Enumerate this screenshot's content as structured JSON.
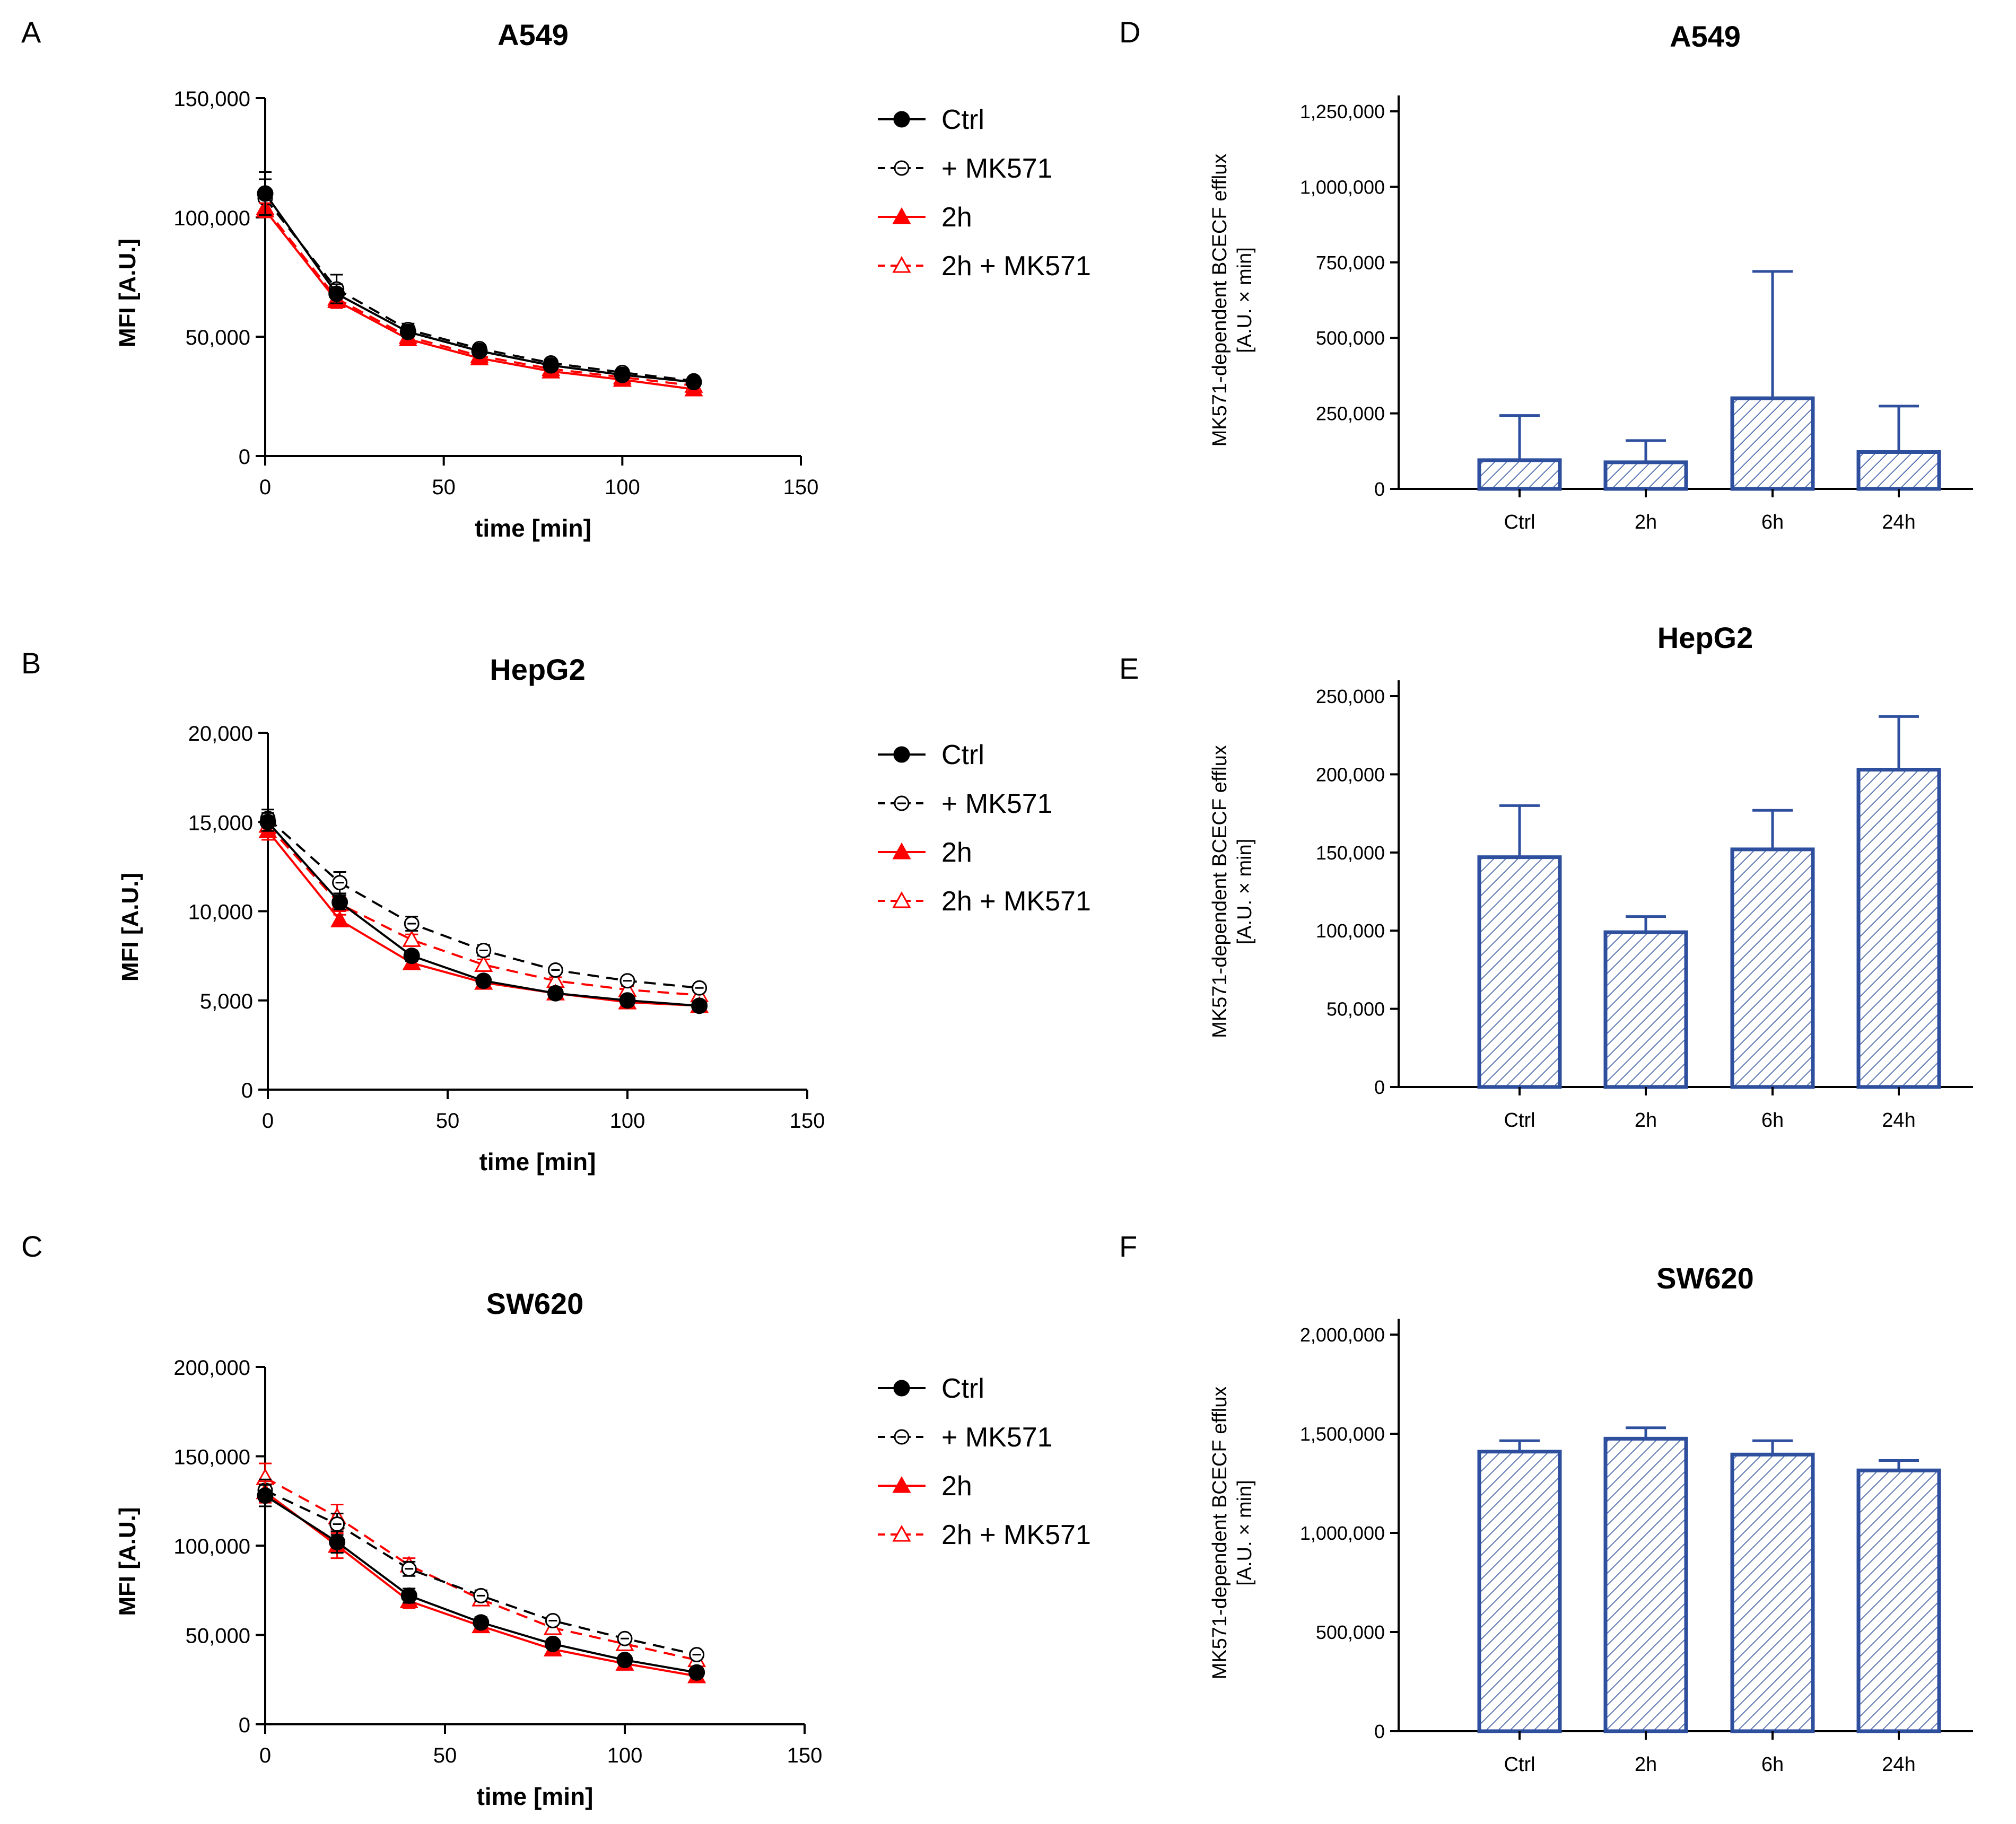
{
  "figure": {
    "panels": [
      {
        "letter": "A"
      },
      {
        "letter": "B"
      },
      {
        "letter": "C"
      },
      {
        "letter": "D"
      },
      {
        "letter": "E"
      },
      {
        "letter": "F"
      }
    ]
  },
  "colors": {
    "axis": "#000000",
    "ctrl": "#000000",
    "red": "#ff0000",
    "bar_stroke": "#2e4f9e",
    "bar_fill": "#ffffff",
    "bar_hatch": "#2e4f9e"
  },
  "chart_data": [
    {
      "id": "A",
      "type": "line",
      "title": "A549",
      "xlabel": "time [min]",
      "ylabel": "MFI [A.U.]",
      "xlim": [
        0,
        150
      ],
      "ylim": [
        0,
        150000
      ],
      "xticks": [
        0,
        50,
        100,
        150
      ],
      "xtick_labels": [
        "0",
        "50",
        "100",
        "150"
      ],
      "yticks": [
        0,
        50000,
        100000,
        150000
      ],
      "ytick_labels": [
        "0",
        "50,000",
        "100,000",
        "150,000"
      ],
      "x": [
        0,
        20,
        40,
        60,
        80,
        100,
        120
      ],
      "legend": [
        "Ctrl",
        "+ MK571",
        "2h",
        "2h + MK571"
      ],
      "series": [
        {
          "name": "Ctrl",
          "values": [
            110000,
            68000,
            52000,
            44000,
            38000,
            34000,
            31000
          ],
          "err": [
            9000,
            4000,
            2000,
            1500,
            1200,
            1000,
            1000
          ]
        },
        {
          "name": "+ MK571",
          "values": [
            108000,
            70000,
            53000,
            45000,
            39000,
            35000,
            31500
          ],
          "err": [
            8000,
            6000,
            2500,
            1500,
            1200,
            1000,
            1000
          ]
        },
        {
          "name": "2h",
          "values": [
            103000,
            65000,
            49000,
            41000,
            35500,
            32000,
            28000
          ],
          "err": [
            3000,
            3000,
            2000,
            1500,
            1200,
            1000,
            1000
          ]
        },
        {
          "name": "2h + MK571",
          "values": [
            104000,
            66000,
            50000,
            42000,
            36500,
            33000,
            29500
          ],
          "err": [
            3000,
            3000,
            2000,
            1500,
            1200,
            1000,
            1000
          ]
        }
      ]
    },
    {
      "id": "B",
      "type": "line",
      "title": "HepG2",
      "xlabel": "time [min]",
      "ylabel": "MFI [A.U.]",
      "xlim": [
        0,
        150
      ],
      "ylim": [
        0,
        20000
      ],
      "xticks": [
        0,
        50,
        100,
        150
      ],
      "xtick_labels": [
        "0",
        "50",
        "100",
        "150"
      ],
      "yticks": [
        0,
        5000,
        10000,
        15000,
        20000
      ],
      "ytick_labels": [
        "0",
        "5,000",
        "10,000",
        "15,000",
        "20,000"
      ],
      "x": [
        0,
        20,
        40,
        60,
        80,
        100,
        120
      ],
      "legend": [
        "Ctrl",
        "+ MK571",
        "2h",
        "2h + MK571"
      ],
      "series": [
        {
          "name": "Ctrl",
          "values": [
            15000,
            10500,
            7500,
            6100,
            5400,
            5000,
            4700
          ],
          "err": [
            500,
            400,
            300,
            200,
            200,
            200,
            200
          ]
        },
        {
          "name": "+ MK571",
          "values": [
            15200,
            11600,
            9300,
            7800,
            6700,
            6100,
            5700
          ],
          "err": [
            500,
            600,
            400,
            300,
            200,
            200,
            200
          ]
        },
        {
          "name": "2h",
          "values": [
            14500,
            9500,
            7100,
            6000,
            5400,
            4900,
            4700
          ],
          "err": [
            500,
            300,
            300,
            200,
            200,
            200,
            200
          ]
        },
        {
          "name": "2h + MK571",
          "values": [
            14800,
            10400,
            8400,
            7000,
            6100,
            5600,
            5300
          ],
          "err": [
            500,
            400,
            300,
            300,
            200,
            200,
            200
          ]
        }
      ]
    },
    {
      "id": "C",
      "type": "line",
      "title": "SW620",
      "xlabel": "time [min]",
      "ylabel": "MFI [A.U.]",
      "xlim": [
        0,
        150
      ],
      "ylim": [
        0,
        200000
      ],
      "xticks": [
        0,
        50,
        100,
        150
      ],
      "xtick_labels": [
        "0",
        "50",
        "100",
        "150"
      ],
      "yticks": [
        0,
        50000,
        100000,
        150000,
        200000
      ],
      "ytick_labels": [
        "0",
        "50,000",
        "100,000",
        "150,000",
        "200,000"
      ],
      "x": [
        0,
        20,
        40,
        60,
        80,
        100,
        120
      ],
      "legend": [
        "Ctrl",
        "+ MK571",
        "2h",
        "2h + MK571"
      ],
      "series": [
        {
          "name": "Ctrl",
          "values": [
            128000,
            102000,
            72000,
            57000,
            45000,
            36000,
            29000
          ],
          "err": [
            6000,
            6000,
            4000,
            3000,
            2000,
            2000,
            2000
          ]
        },
        {
          "name": "+ MK571",
          "values": [
            131000,
            112000,
            87000,
            72000,
            58000,
            48000,
            39000
          ],
          "err": [
            6000,
            6000,
            4000,
            3000,
            2000,
            2000,
            2000
          ]
        },
        {
          "name": "2h",
          "values": [
            130000,
            100000,
            69000,
            55000,
            42000,
            34000,
            27000
          ],
          "err": [
            6000,
            7000,
            4000,
            3000,
            2000,
            2000,
            2000
          ]
        },
        {
          "name": "2h + MK571",
          "values": [
            138000,
            116000,
            89000,
            70000,
            54000,
            45000,
            36000
          ],
          "err": [
            8000,
            7000,
            4000,
            3000,
            2000,
            2000,
            2000
          ]
        }
      ]
    },
    {
      "id": "D",
      "type": "bar",
      "title": "A549",
      "xlabel": "",
      "ylabel": [
        "MK571-dependent BCECF efflux",
        "[A.U. × min]"
      ],
      "ylim": [
        0,
        1250000
      ],
      "yticks": [
        0,
        250000,
        500000,
        750000,
        1000000,
        1250000
      ],
      "ytick_labels": [
        "0",
        "250,000",
        "500,000",
        "750,000",
        "1,000,000",
        "1,250,000"
      ],
      "categories": [
        "Ctrl",
        "2h",
        "6h",
        "24h"
      ],
      "values": [
        95000,
        88000,
        300000,
        122000
      ],
      "err": [
        148000,
        72000,
        420000,
        152000
      ]
    },
    {
      "id": "E",
      "type": "bar",
      "title": "HepG2",
      "xlabel": "",
      "ylabel": [
        "MK571-dependent BCECF efflux",
        "[A.U. × min]"
      ],
      "ylim": [
        0,
        250000
      ],
      "yticks": [
        0,
        50000,
        100000,
        150000,
        200000,
        250000
      ],
      "ytick_labels": [
        "0",
        "50,000",
        "100,000",
        "150,000",
        "200,000",
        "250,000"
      ],
      "categories": [
        "Ctrl",
        "2h",
        "6h",
        "24h"
      ],
      "values": [
        147000,
        99000,
        152000,
        203000
      ],
      "err": [
        33000,
        10000,
        25000,
        34000
      ]
    },
    {
      "id": "F",
      "type": "bar",
      "title": "SW620",
      "xlabel": "",
      "ylabel": [
        "MK571-dependent BCECF efflux",
        "[A.U. × min]"
      ],
      "ylim": [
        0,
        2000000
      ],
      "yticks": [
        0,
        500000,
        1000000,
        1500000,
        2000000
      ],
      "ytick_labels": [
        "0",
        "500,000",
        "1,000,000",
        "1,500,000",
        "2,000,000"
      ],
      "categories": [
        "Ctrl",
        "2h",
        "6h",
        "24h"
      ],
      "values": [
        1410000,
        1475000,
        1395000,
        1315000
      ],
      "err": [
        55000,
        55000,
        70000,
        50000
      ]
    }
  ]
}
